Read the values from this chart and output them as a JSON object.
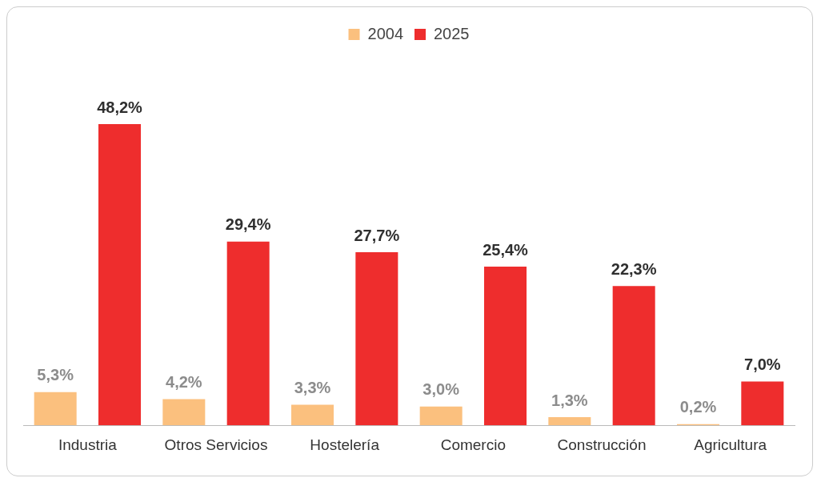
{
  "chart_data": {
    "type": "bar",
    "categories": [
      "Industria",
      "Otros Servicios",
      "Hostelería",
      "Comercio",
      "Construcción",
      "Agricultura"
    ],
    "series": [
      {
        "name": "2004",
        "color": "#fbc07e",
        "values": [
          5.3,
          4.2,
          3.3,
          3.0,
          1.3,
          0.2
        ],
        "value_labels": [
          "5,3%",
          "4,2%",
          "3,3%",
          "3,0%",
          "1,3%",
          "0,2%"
        ]
      },
      {
        "name": "2025",
        "color": "#ee2d2d",
        "values": [
          48.2,
          29.4,
          27.7,
          25.4,
          22.3,
          7.0
        ],
        "value_labels": [
          "48,2%",
          "29,4%",
          "27,7%",
          "25,4%",
          "22,3%",
          "7,0%"
        ]
      }
    ],
    "legend": "top",
    "grid": false,
    "tick_labels": "x"
  }
}
